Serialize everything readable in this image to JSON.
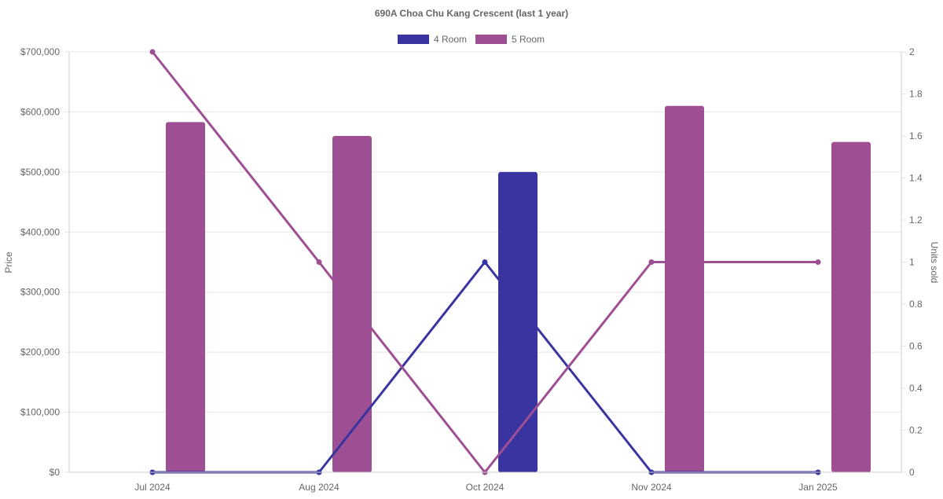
{
  "chart_data": {
    "type": "bar",
    "title": "690A Choa Chu Kang Crescent (last 1 year)",
    "categories": [
      "Jul 2024",
      "Aug 2024",
      "Oct 2024",
      "Nov 2024",
      "Jan 2025"
    ],
    "ylabel": "Price",
    "y2label": "Units sold",
    "ylim": [
      0,
      700000
    ],
    "y2lim": [
      0,
      2
    ],
    "yticks": [
      "$0",
      "$100,000",
      "$200,000",
      "$300,000",
      "$400,000",
      "$500,000",
      "$600,000",
      "$700,000"
    ],
    "y2ticks": [
      "0",
      "0.2",
      "0.4",
      "0.6",
      "0.8",
      "1",
      "1.2",
      "1.4",
      "1.6",
      "1.8",
      "2"
    ],
    "grid": true,
    "legend_position": "top-center",
    "series": [
      {
        "name": "4 Room",
        "color": "#3a34a0",
        "price": [
          null,
          null,
          500000,
          null,
          null
        ],
        "units": [
          0,
          0,
          1,
          0,
          0
        ]
      },
      {
        "name": "5 Room",
        "color": "#9e4f93",
        "price": [
          583000,
          560000,
          null,
          610000,
          550000
        ],
        "units": [
          2,
          1,
          0,
          1,
          1
        ]
      }
    ]
  }
}
